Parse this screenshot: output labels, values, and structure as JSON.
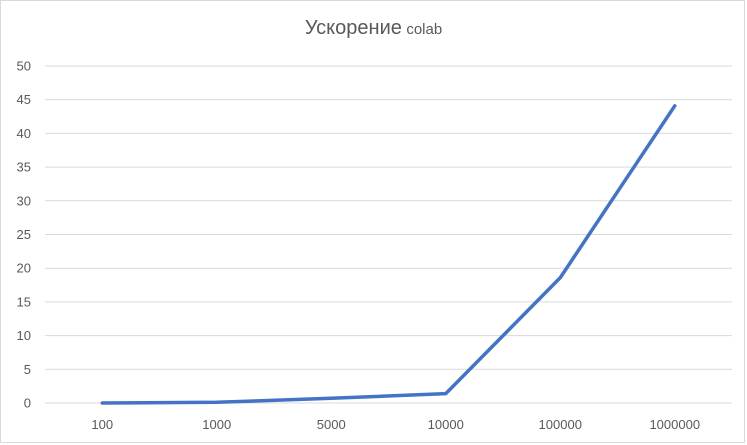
{
  "chart_data": {
    "type": "line",
    "title": "Ускорение",
    "title_suffix": "colab",
    "categories": [
      "100",
      "1000",
      "5000",
      "10000",
      "100000",
      "1000000"
    ],
    "series": [
      {
        "values": [
          0.0,
          0.1,
          0.7,
          1.4,
          18.6,
          44.1
        ],
        "color": "#4472c4"
      }
    ],
    "ylim": [
      0,
      50
    ],
    "yticks": [
      0,
      5,
      10,
      15,
      20,
      25,
      30,
      35,
      40,
      45,
      50
    ],
    "grid": true,
    "legend": "none"
  }
}
